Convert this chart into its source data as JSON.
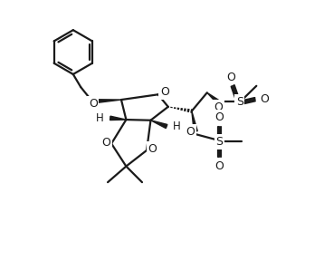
{
  "bg": "#ffffff",
  "lc": "#1a1a1a",
  "lw": 1.6,
  "blw": 4.0,
  "fs": 8.5,
  "fig_w": 3.58,
  "fig_h": 2.98,
  "dpi": 100,
  "xlim": [
    0,
    9.5
  ],
  "ylim": [
    0,
    8.8
  ]
}
